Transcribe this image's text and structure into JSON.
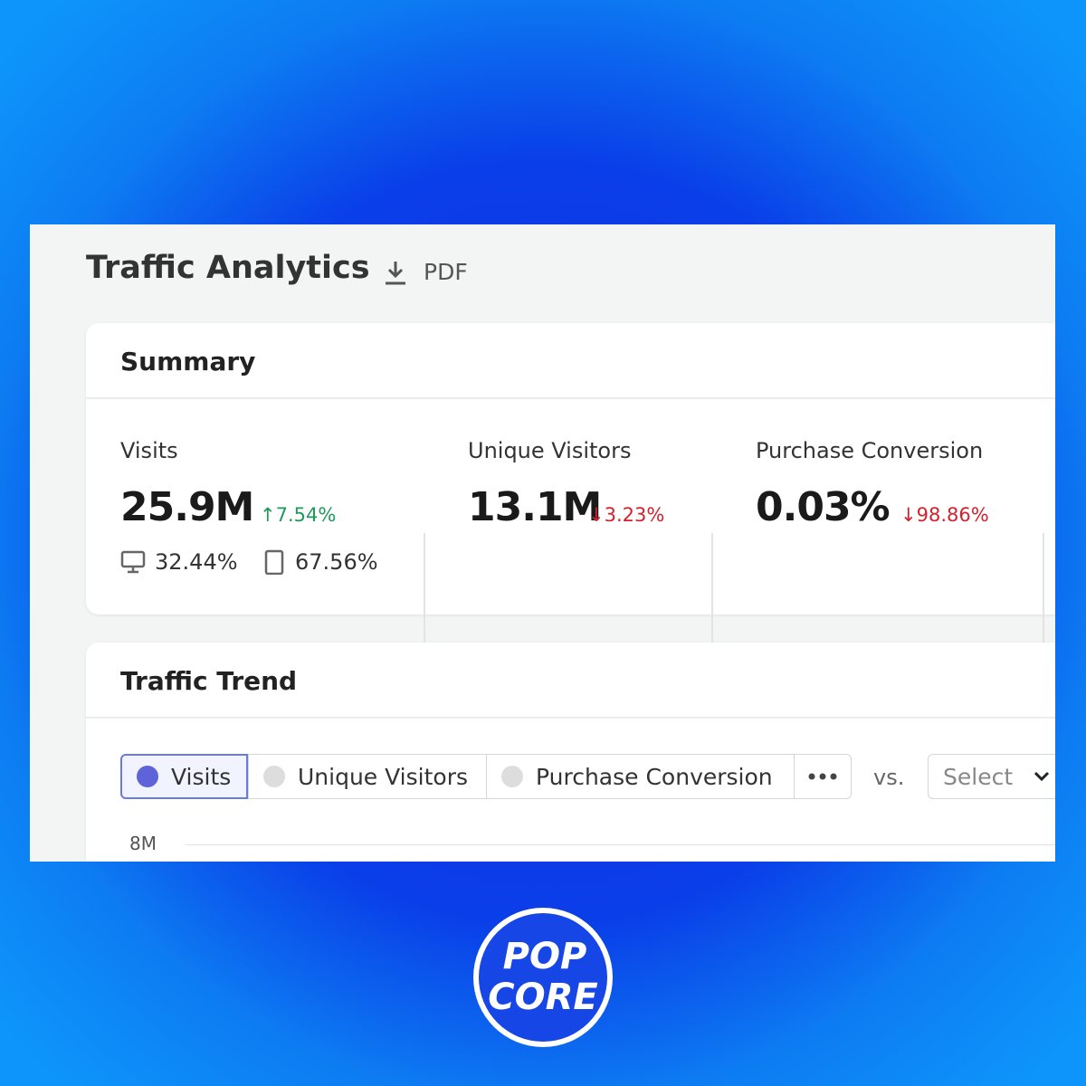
{
  "header": {
    "title": "Traffic Analytics",
    "export": "PDF"
  },
  "summary": {
    "title": "Summary",
    "metrics": [
      {
        "label": "Visits",
        "value": "25.9M",
        "change": "↑7.54%",
        "desktop": "32.44%",
        "mobile": "67.56%"
      },
      {
        "label": "Unique Visitors",
        "value": "13.1M",
        "change": "↓3.23%"
      },
      {
        "label": "Purchase Conversion",
        "value": "0.03%",
        "change": "↓98.86%"
      }
    ]
  },
  "trend": {
    "title": "Traffic Trend",
    "tabs": [
      "Visits",
      "Unique Visitors",
      "Purchase Conversion"
    ],
    "compare": "vs.",
    "select": "Select",
    "y_tick": "8M"
  },
  "logo": {
    "line1": "POP",
    "line2": "CORE"
  }
}
